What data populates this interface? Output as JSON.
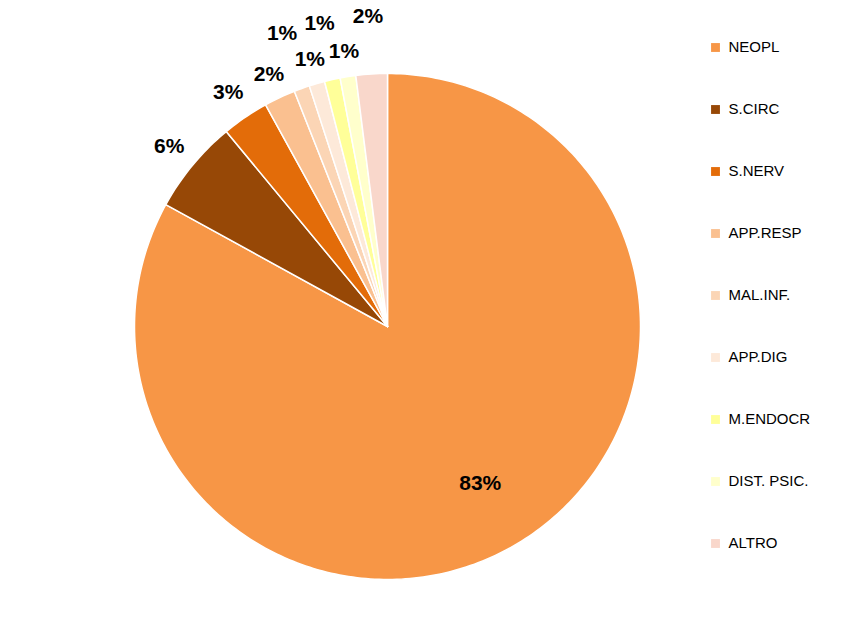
{
  "chart_data": {
    "type": "pie",
    "categories": [
      "NEOPL",
      "S.CIRC",
      "S.NERV",
      "APP.RESP",
      "MAL.INF.",
      "APP.DIG",
      "M.ENDOCR",
      "DIST. PSIC.",
      "ALTRO"
    ],
    "values": [
      83,
      6,
      3,
      2,
      1,
      1,
      1,
      1,
      2
    ],
    "value_labels": [
      "83%",
      "6%",
      "3%",
      "2%",
      "1%",
      "1%",
      "1%",
      "1%",
      "2%"
    ],
    "colors": [
      "#F79646",
      "#974806",
      "#E36C09",
      "#FAC090",
      "#FBD5B5",
      "#FDE9D9",
      "#FFFF99",
      "#FFFFCC",
      "#F9D7CB"
    ],
    "data_labels": true,
    "legend": "right"
  }
}
